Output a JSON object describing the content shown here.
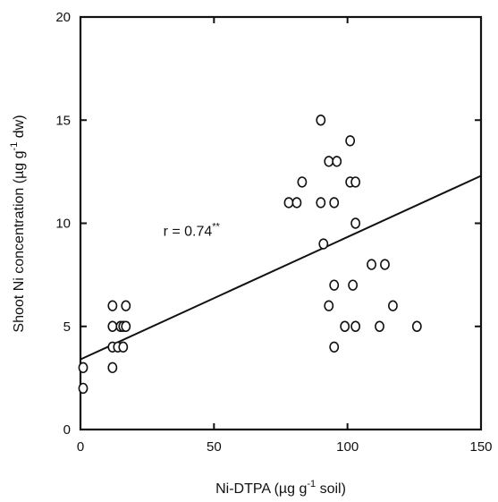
{
  "chart_data": {
    "type": "scatter",
    "xlabel_parts": {
      "main": "Ni-DTPA  (µg g",
      "sup": "-1",
      "tail": " soil)"
    },
    "ylabel_parts": {
      "main": "Shoot Ni concentration  (µg g",
      "sup": "-1",
      "tail": " dw)"
    },
    "xlim": [
      0,
      150
    ],
    "ylim": [
      0,
      20
    ],
    "xticks": [
      0,
      50,
      100,
      150
    ],
    "yticks": [
      0,
      5,
      10,
      15,
      20
    ],
    "grid": false,
    "annotation": {
      "prefix": "r = 0.74",
      "sup": "**",
      "x": 31,
      "y": 9.4
    },
    "regression_line": {
      "x": [
        0,
        150
      ],
      "y": [
        3.4,
        12.3
      ]
    },
    "points": [
      {
        "x": 1,
        "y": 3
      },
      {
        "x": 1,
        "y": 2
      },
      {
        "x": 12,
        "y": 6
      },
      {
        "x": 12,
        "y": 5
      },
      {
        "x": 12,
        "y": 4
      },
      {
        "x": 12,
        "y": 3
      },
      {
        "x": 14,
        "y": 4
      },
      {
        "x": 15,
        "y": 5
      },
      {
        "x": 16,
        "y": 5
      },
      {
        "x": 16,
        "y": 4
      },
      {
        "x": 17,
        "y": 6
      },
      {
        "x": 17,
        "y": 5
      },
      {
        "x": 78,
        "y": 11
      },
      {
        "x": 81,
        "y": 11
      },
      {
        "x": 83,
        "y": 12
      },
      {
        "x": 90,
        "y": 15
      },
      {
        "x": 90,
        "y": 11
      },
      {
        "x": 91,
        "y": 9
      },
      {
        "x": 93,
        "y": 13
      },
      {
        "x": 93,
        "y": 6
      },
      {
        "x": 95,
        "y": 11
      },
      {
        "x": 95,
        "y": 7
      },
      {
        "x": 95,
        "y": 4
      },
      {
        "x": 96,
        "y": 13
      },
      {
        "x": 99,
        "y": 5
      },
      {
        "x": 101,
        "y": 14
      },
      {
        "x": 101,
        "y": 12
      },
      {
        "x": 102,
        "y": 7
      },
      {
        "x": 103,
        "y": 12
      },
      {
        "x": 103,
        "y": 10
      },
      {
        "x": 103,
        "y": 5
      },
      {
        "x": 109,
        "y": 8
      },
      {
        "x": 112,
        "y": 5
      },
      {
        "x": 114,
        "y": 8
      },
      {
        "x": 117,
        "y": 6
      },
      {
        "x": 126,
        "y": 5
      }
    ]
  }
}
